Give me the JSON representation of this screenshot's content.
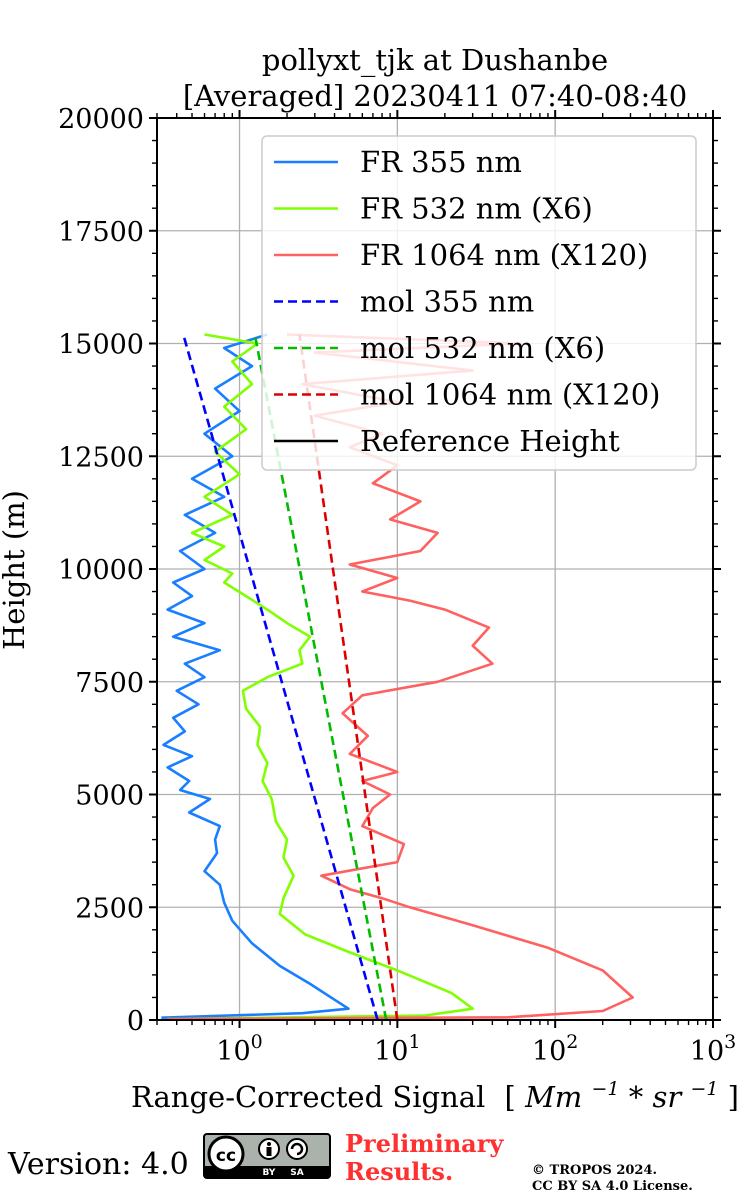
{
  "chart_data": {
    "type": "line",
    "title_line1": "pollyxt_tjk at Dushanbe",
    "title_line2": "[Averaged] 20230411 07:40-08:40",
    "xlabel_text": "Range-Corrected Signal",
    "xlabel_units_open": "[",
    "xlabel_units_body": "Mm",
    "xlabel_units_sup1": "−1",
    "xlabel_units_mid": " * sr",
    "xlabel_units_sup2": "−1",
    "xlabel_units_close": "]",
    "ylabel": "Height (m)",
    "xscale": "log",
    "xlim": [
      0.3,
      1000
    ],
    "ylim": [
      0,
      20000
    ],
    "x_tick_labels": [
      {
        "value": 1,
        "base": "10",
        "exp": "0"
      },
      {
        "value": 10,
        "base": "10",
        "exp": "1"
      },
      {
        "value": 100,
        "base": "10",
        "exp": "2"
      },
      {
        "value": 1000,
        "base": "10",
        "exp": "3"
      }
    ],
    "y_ticks": [
      0,
      2500,
      5000,
      7500,
      10000,
      12500,
      15000,
      17500,
      20000
    ],
    "y_tick_labels": [
      "0",
      "2500",
      "5000",
      "7500",
      "10000",
      "12500",
      "15000",
      "17500",
      "20000"
    ],
    "grid": true,
    "legend_position": "top-right",
    "series": [
      {
        "name": "FR 355 nm",
        "color": "#1a7fff",
        "style": "solid",
        "points": [
          [
            0.32,
            50
          ],
          [
            2.5,
            150
          ],
          [
            4.9,
            250
          ],
          [
            4.0,
            450
          ],
          [
            2.8,
            800
          ],
          [
            1.8,
            1200
          ],
          [
            1.2,
            1700
          ],
          [
            0.9,
            2200
          ],
          [
            0.8,
            2600
          ],
          [
            0.75,
            3000
          ],
          [
            0.6,
            3300
          ],
          [
            0.72,
            3700
          ],
          [
            0.7,
            4000
          ],
          [
            0.75,
            4300
          ],
          [
            0.48,
            4600
          ],
          [
            0.65,
            4900
          ],
          [
            0.42,
            5100
          ],
          [
            0.48,
            5300
          ],
          [
            0.35,
            5600
          ],
          [
            0.5,
            5850
          ],
          [
            0.33,
            6100
          ],
          [
            0.45,
            6400
          ],
          [
            0.38,
            6700
          ],
          [
            0.55,
            7000
          ],
          [
            0.4,
            7300
          ],
          [
            0.6,
            7600
          ],
          [
            0.45,
            7900
          ],
          [
            0.75,
            8200
          ],
          [
            0.38,
            8500
          ],
          [
            0.6,
            8800
          ],
          [
            0.35,
            9100
          ],
          [
            0.5,
            9400
          ],
          [
            0.38,
            9700
          ],
          [
            0.6,
            10000
          ],
          [
            0.42,
            10400
          ],
          [
            0.7,
            10800
          ],
          [
            0.45,
            11200
          ],
          [
            0.8,
            11600
          ],
          [
            0.5,
            12000
          ],
          [
            0.9,
            12500
          ],
          [
            0.6,
            13000
          ],
          [
            1.0,
            13500
          ],
          [
            0.7,
            14000
          ],
          [
            1.2,
            14500
          ],
          [
            0.8,
            14900
          ],
          [
            1.5,
            15200
          ]
        ]
      },
      {
        "name": "FR 532 nm (X6)",
        "color": "#80ff00",
        "style": "solid",
        "points": [
          [
            0.35,
            20
          ],
          [
            15,
            100
          ],
          [
            30,
            250
          ],
          [
            22,
            600
          ],
          [
            10,
            1100
          ],
          [
            5,
            1500
          ],
          [
            2.6,
            1900
          ],
          [
            1.8,
            2350
          ],
          [
            1.9,
            2700
          ],
          [
            2.2,
            3200
          ],
          [
            1.9,
            3600
          ],
          [
            2.0,
            4000
          ],
          [
            1.7,
            4400
          ],
          [
            1.6,
            4900
          ],
          [
            1.4,
            5300
          ],
          [
            1.5,
            5700
          ],
          [
            1.3,
            6100
          ],
          [
            1.35,
            6500
          ],
          [
            1.1,
            6900
          ],
          [
            1.05,
            7300
          ],
          [
            1.5,
            7600
          ],
          [
            2.5,
            7900
          ],
          [
            2.4,
            8200
          ],
          [
            2.8,
            8500
          ],
          [
            2.0,
            8800
          ],
          [
            1.5,
            9100
          ],
          [
            1.1,
            9400
          ],
          [
            0.8,
            9700
          ],
          [
            0.9,
            9900
          ],
          [
            0.6,
            10200
          ],
          [
            0.8,
            10500
          ],
          [
            0.5,
            10800
          ],
          [
            0.9,
            11200
          ],
          [
            0.6,
            11600
          ],
          [
            1.0,
            12100
          ],
          [
            0.7,
            12600
          ],
          [
            1.1,
            13100
          ],
          [
            0.8,
            13600
          ],
          [
            1.2,
            14100
          ],
          [
            0.9,
            14600
          ],
          [
            1.3,
            15000
          ],
          [
            0.6,
            15200
          ]
        ]
      },
      {
        "name": "FR 1064 nm (X120)",
        "color": "#ff6060",
        "style": "solid",
        "points": [
          [
            0.35,
            20
          ],
          [
            50,
            60
          ],
          [
            200,
            200
          ],
          [
            310,
            500
          ],
          [
            200,
            1100
          ],
          [
            90,
            1600
          ],
          [
            30,
            2100
          ],
          [
            12,
            2500
          ],
          [
            8,
            2700
          ],
          [
            5,
            2900
          ],
          [
            3.3,
            3200
          ],
          [
            10,
            3500
          ],
          [
            11,
            3900
          ],
          [
            6,
            4300
          ],
          [
            7,
            4700
          ],
          [
            9,
            5000
          ],
          [
            6,
            5300
          ],
          [
            10,
            5500
          ],
          [
            5,
            5900
          ],
          [
            6.5,
            6300
          ],
          [
            4.5,
            6800
          ],
          [
            6,
            7200
          ],
          [
            18,
            7500
          ],
          [
            40,
            7900
          ],
          [
            30,
            8300
          ],
          [
            38,
            8700
          ],
          [
            20,
            9100
          ],
          [
            12,
            9300
          ],
          [
            6,
            9500
          ],
          [
            10,
            9800
          ],
          [
            5,
            10100
          ],
          [
            14,
            10400
          ],
          [
            18,
            10800
          ],
          [
            9,
            11100
          ],
          [
            14,
            11500
          ],
          [
            7,
            11900
          ],
          [
            10,
            12300
          ],
          [
            5,
            12700
          ],
          [
            8,
            13000
          ],
          [
            3,
            13400
          ],
          [
            10,
            13700
          ],
          [
            2.5,
            14100
          ],
          [
            30,
            14400
          ],
          [
            3,
            14800
          ],
          [
            60,
            15000
          ],
          [
            2,
            15200
          ]
        ]
      },
      {
        "name": "mol 355 nm",
        "color": "#0000ff",
        "style": "dashed",
        "points": [
          [
            7.5,
            0
          ],
          [
            0.44,
            15200
          ]
        ]
      },
      {
        "name": "mol 532 nm (X6)",
        "color": "#00bb00",
        "style": "dashed",
        "points": [
          [
            8.5,
            0
          ],
          [
            1.25,
            15200
          ]
        ]
      },
      {
        "name": "mol 1064 nm (X120)",
        "color": "#dd0000",
        "style": "dashed",
        "points": [
          [
            10.0,
            0
          ],
          [
            2.4,
            15200
          ]
        ]
      },
      {
        "name": "Reference Height",
        "color": "#000000",
        "style": "solid",
        "points": []
      }
    ]
  },
  "footer": {
    "version": "Version: 4.0",
    "cc_label": "cc",
    "cc_by": "BY",
    "cc_sa": "SA",
    "preliminary_line1": "Preliminary",
    "preliminary_line2": "Results.",
    "copyright_line1": "© TROPOS 2024.",
    "copyright_line2": "CC BY SA 4.0 License."
  }
}
